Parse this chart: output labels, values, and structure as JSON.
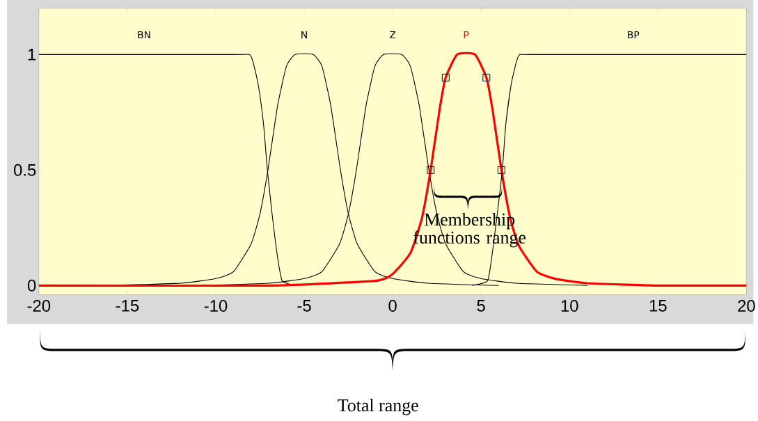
{
  "chart_data": {
    "type": "line",
    "xlim": [
      -20,
      20
    ],
    "ylim": [
      -0.04,
      1.2
    ],
    "xticks": [
      -20,
      -15,
      -10,
      -5,
      0,
      5,
      10,
      15,
      20
    ],
    "yticks": [
      0,
      0.5,
      1
    ],
    "grid": false,
    "series": [
      {
        "name": "BN",
        "color": "#000000",
        "x": [
          -20,
          -9,
          -8.1,
          -7.9,
          -7.6,
          -7.3,
          -7.08,
          -6.8,
          -6.5,
          -6.24,
          -5.5
        ],
        "values": [
          1,
          1,
          1,
          0.97,
          0.87,
          0.7,
          0.5,
          0.3,
          0.12,
          0.02,
          0
        ]
      },
      {
        "name": "N",
        "color": "#000000",
        "x": [
          -16,
          -12,
          -10,
          -9,
          -8,
          -7.5,
          -7.05,
          -6.5,
          -6,
          -5.5,
          -4.5,
          -4,
          -3.5,
          -2.95,
          -2.5,
          -2,
          -1,
          0,
          2,
          6
        ],
        "values": [
          0,
          0.01,
          0.03,
          0.06,
          0.18,
          0.31,
          0.5,
          0.78,
          0.95,
          1,
          1,
          0.95,
          0.78,
          0.5,
          0.31,
          0.18,
          0.06,
          0.03,
          0.01,
          0
        ]
      },
      {
        "name": "Z",
        "color": "#000000",
        "x": [
          -11,
          -7,
          -5,
          -4,
          -3,
          -2.5,
          -2.05,
          -1.5,
          -1,
          -0.5,
          0.5,
          1,
          1.5,
          2.05,
          2.5,
          3,
          4,
          5,
          7,
          11
        ],
        "values": [
          0,
          0.01,
          0.03,
          0.06,
          0.18,
          0.31,
          0.5,
          0.78,
          0.95,
          1,
          1,
          0.95,
          0.78,
          0.5,
          0.31,
          0.18,
          0.06,
          0.03,
          0.01,
          0
        ]
      },
      {
        "name": "P",
        "color": "#ff0000",
        "x": [
          -20,
          -7,
          -1,
          0,
          1,
          1.65,
          2.15,
          2.65,
          3,
          3.65,
          4.65,
          5.3,
          5.65,
          6.15,
          6.65,
          7.15,
          8.15,
          9.15,
          11,
          15,
          20
        ],
        "values": [
          0,
          0,
          0.02,
          0.05,
          0.14,
          0.29,
          0.5,
          0.76,
          0.9,
          1,
          1,
          0.9,
          0.76,
          0.5,
          0.29,
          0.17,
          0.06,
          0.03,
          0.01,
          0,
          0
        ]
      },
      {
        "name": "BP",
        "color": "#000000",
        "x": [
          4.5,
          5.36,
          5.6,
          5.9,
          6.2,
          6.4,
          6.7,
          7,
          7.2,
          8,
          20
        ],
        "values": [
          0,
          0.02,
          0.12,
          0.3,
          0.5,
          0.7,
          0.87,
          0.97,
          1,
          1,
          1
        ]
      },
      {
        "type": "scatter",
        "marker": "square",
        "color": "#000000",
        "x": [
          2.15,
          3,
          5.3,
          6.15
        ],
        "values": [
          0.5,
          0.9,
          0.9,
          0.5
        ]
      }
    ],
    "annotations": [
      "Membership functions range",
      "Total range"
    ]
  }
}
